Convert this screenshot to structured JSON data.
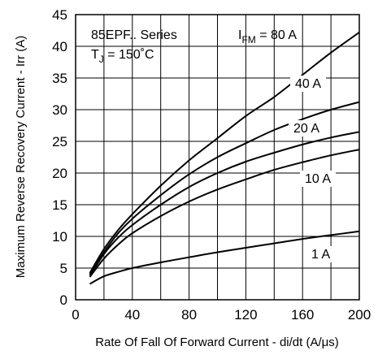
{
  "chart_data": {
    "type": "line",
    "xlabel": "Rate Of Fall Of Forward Current - di/dt (A/μs)",
    "ylabel": "Maximum Reverse Recovery Current - Irr (A)",
    "xlim": [
      0,
      200
    ],
    "ylim": [
      0,
      45
    ],
    "xticks": [
      0,
      40,
      80,
      120,
      160,
      200
    ],
    "yticks": [
      0,
      5,
      10,
      15,
      20,
      25,
      30,
      35,
      40,
      45
    ],
    "grid": true,
    "x": [
      10,
      20,
      30,
      40,
      60,
      80,
      100,
      120,
      140,
      160,
      180,
      200
    ],
    "series": [
      {
        "name": "80 A",
        "values": [
          4.2,
          8.0,
          11.0,
          13.5,
          18.0,
          22.0,
          25.5,
          29.0,
          32.0,
          35.5,
          39.0,
          42.2
        ]
      },
      {
        "name": "40 A",
        "values": [
          4.0,
          7.5,
          10.5,
          12.8,
          16.5,
          19.8,
          22.5,
          24.7,
          26.8,
          28.5,
          30.0,
          31.2
        ]
      },
      {
        "name": "20 A",
        "values": [
          3.8,
          7.2,
          9.8,
          11.8,
          15.0,
          17.8,
          20.0,
          21.8,
          23.2,
          24.5,
          25.6,
          26.5
        ]
      },
      {
        "name": "10 A",
        "values": [
          3.6,
          6.5,
          8.7,
          10.5,
          13.2,
          15.5,
          17.4,
          19.0,
          20.5,
          21.7,
          22.8,
          23.7
        ]
      },
      {
        "name": "1 A",
        "values": [
          2.5,
          3.7,
          4.4,
          5.0,
          5.9,
          6.7,
          7.5,
          8.2,
          8.9,
          9.6,
          10.2,
          10.8
        ]
      }
    ],
    "annotations": {
      "series_title": "85EPF.. Series",
      "temp_prefix": "T",
      "temp_sub": "J",
      "temp_value": " = 150˚C",
      "ifm_prefix": "I",
      "ifm_sub": "FM",
      "ifm_value": " = 80 A",
      "label_40": "40 A",
      "label_20": "20 A",
      "label_10": "10 A",
      "label_1": "1 A"
    }
  }
}
